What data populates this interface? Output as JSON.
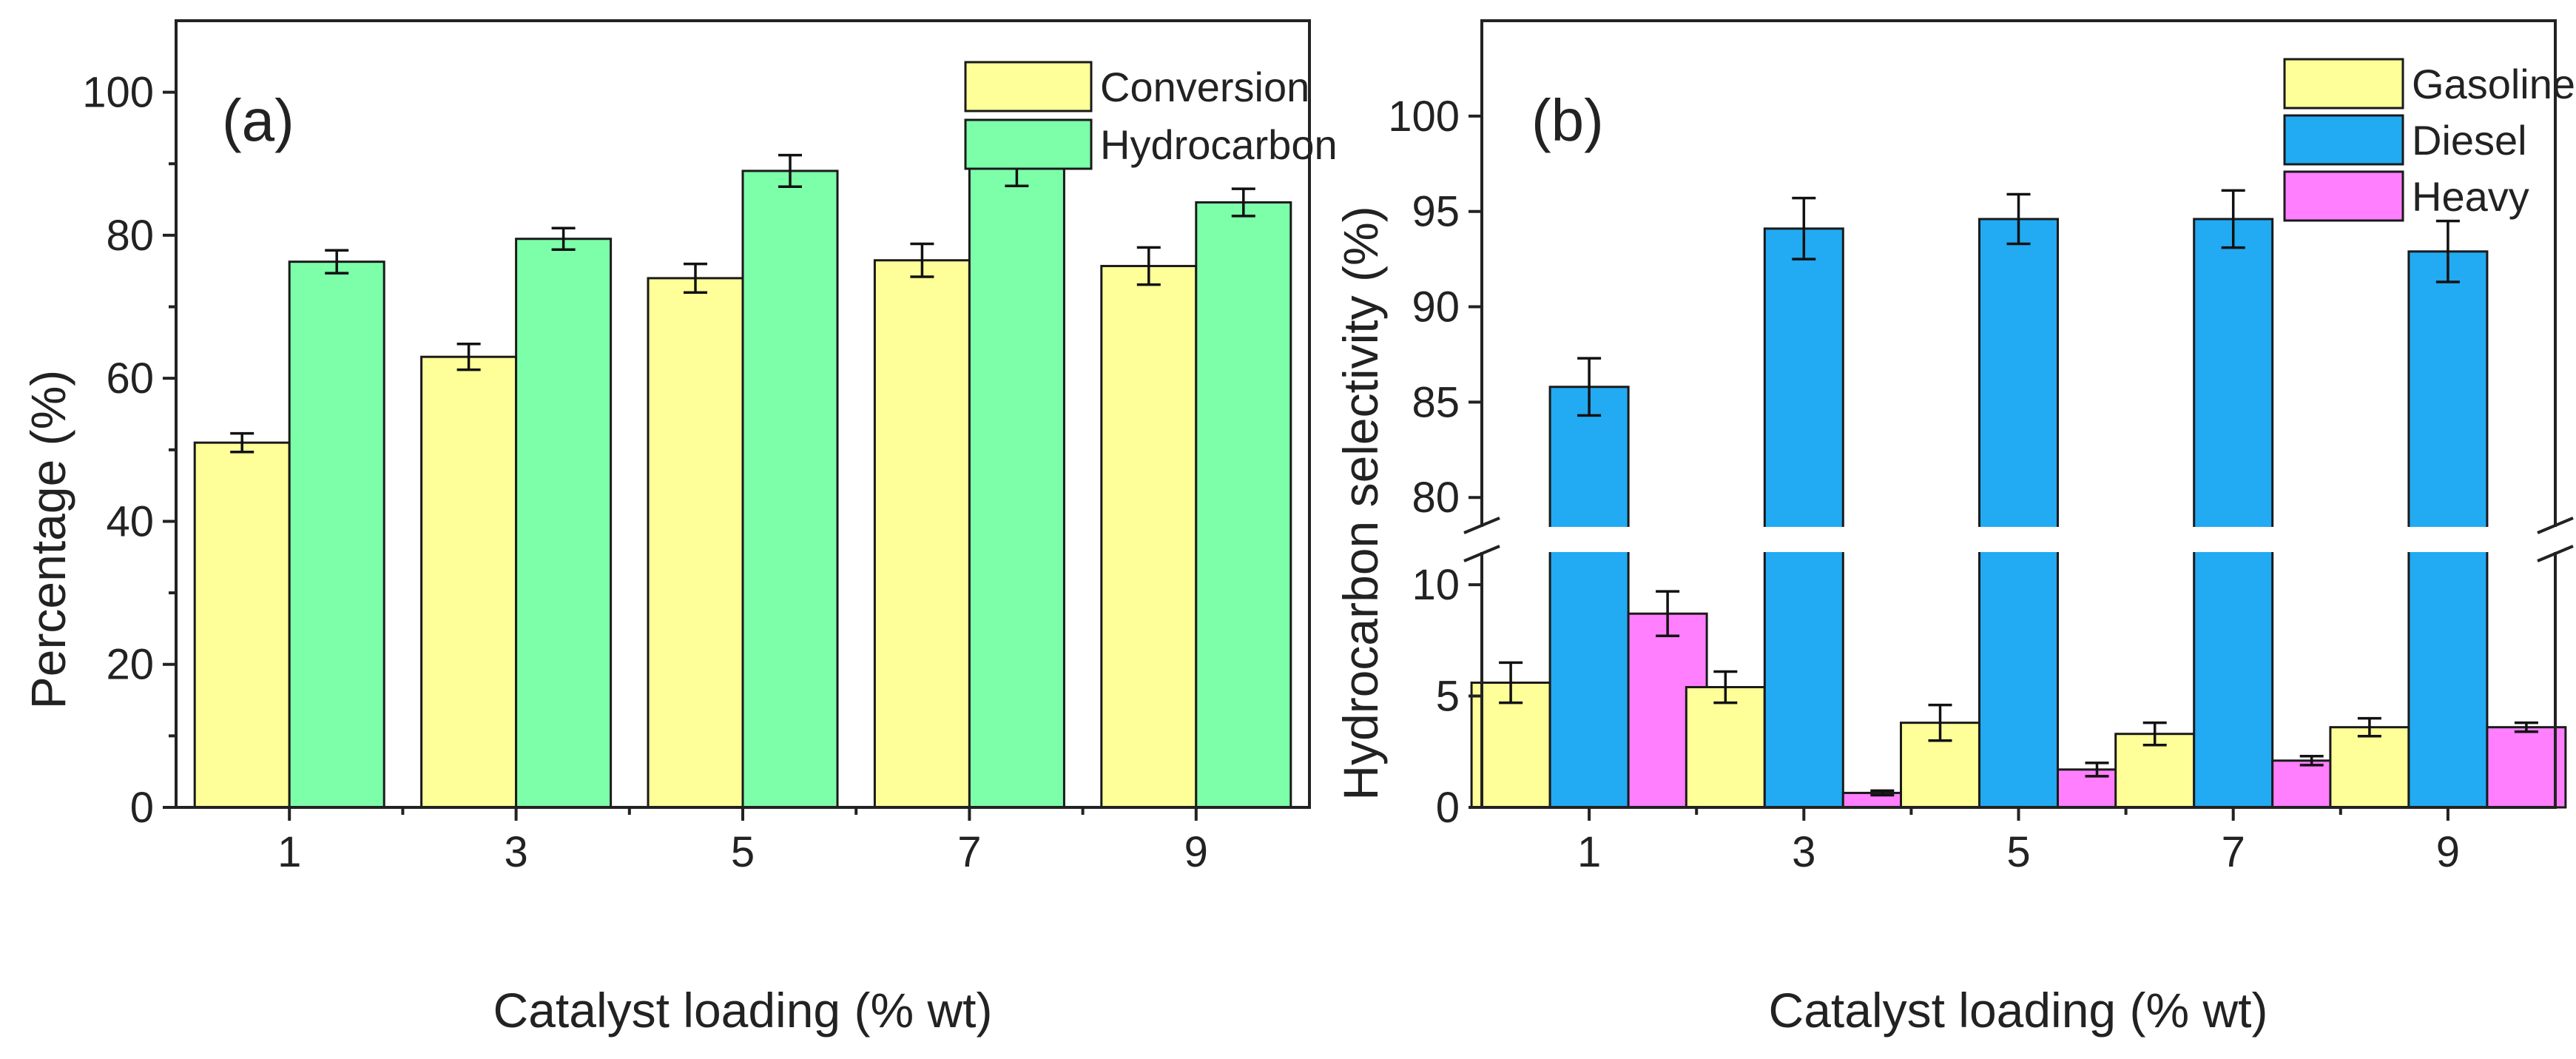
{
  "colors": {
    "conversion": "#ffff99",
    "hydrocarbon": "#7dffaa",
    "gasoline": "#ffff99",
    "diesel": "#22aaf2",
    "heavy": "#ff7fff"
  },
  "chart_data": [
    {
      "type": "bar",
      "panel": "(a)",
      "categories": [
        "1",
        "3",
        "5",
        "7",
        "9"
      ],
      "xlabel": "Catalyst loading (% wt)",
      "ylabel": "Percentage (%)",
      "ylim": [
        0,
        110
      ],
      "yticks": [
        "0",
        "20",
        "40",
        "60",
        "80",
        "100"
      ],
      "legend_position": "top-right",
      "series": [
        {
          "name": "Conversion",
          "color_key": "conversion",
          "values": [
            51.0,
            63.0,
            74.0,
            76.5,
            75.7
          ],
          "errors": [
            1.3,
            1.8,
            2.0,
            2.3,
            2.6
          ]
        },
        {
          "name": "Hydrocarbon",
          "color_key": "hydrocarbon",
          "values": [
            76.3,
            79.5,
            89.0,
            89.7,
            84.6
          ],
          "errors": [
            1.6,
            1.5,
            2.2,
            2.8,
            1.9
          ]
        }
      ]
    },
    {
      "type": "bar",
      "panel": "(b)",
      "categories": [
        "1",
        "3",
        "5",
        "7",
        "9"
      ],
      "xlabel": "Catalyst loading (% wt)",
      "ylabel": "Hydrocarbon selectivity (%)",
      "y_break": {
        "lower_range": [
          0,
          11
        ],
        "upper_range": [
          79,
          105
        ]
      },
      "yticks_lower": [
        "0",
        "5",
        "10"
      ],
      "yticks_upper": [
        "80",
        "85",
        "90",
        "95",
        "100"
      ],
      "legend_position": "top-right",
      "series": [
        {
          "name": "Gasoline",
          "color_key": "gasoline",
          "values": [
            5.6,
            5.4,
            3.8,
            3.3,
            3.6
          ],
          "errors": [
            0.9,
            0.7,
            0.8,
            0.5,
            0.4
          ]
        },
        {
          "name": "Diesel",
          "color_key": "diesel",
          "values": [
            85.8,
            94.1,
            94.6,
            94.6,
            92.9
          ],
          "errors": [
            1.5,
            1.6,
            1.3,
            1.5,
            1.6
          ]
        },
        {
          "name": "Heavy",
          "color_key": "heavy",
          "values": [
            8.7,
            0.65,
            1.7,
            2.1,
            3.6
          ],
          "errors": [
            1.0,
            0.1,
            0.3,
            0.2,
            0.2
          ]
        }
      ]
    }
  ]
}
